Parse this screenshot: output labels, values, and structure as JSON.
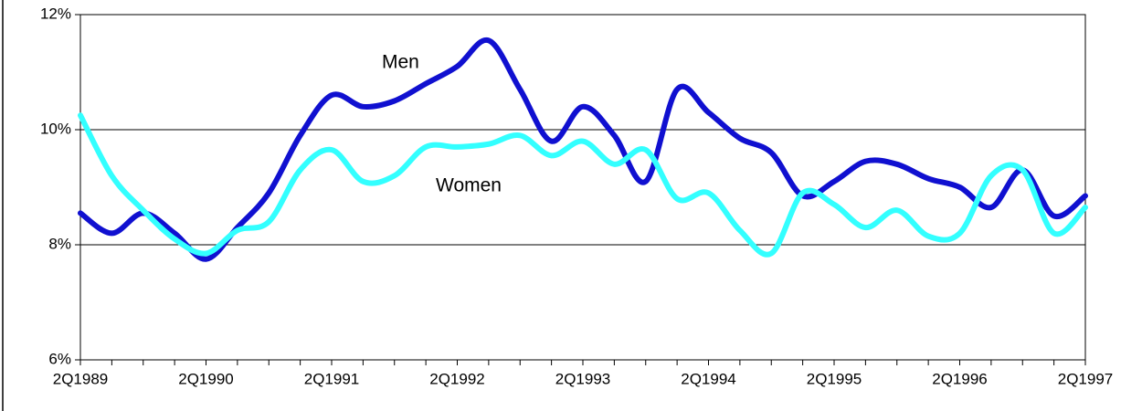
{
  "chart_data": {
    "type": "line",
    "categories": [
      "2Q1989",
      null,
      null,
      null,
      "2Q1990",
      null,
      null,
      null,
      "2Q1991",
      null,
      null,
      null,
      "2Q1992",
      null,
      null,
      null,
      "2Q1993",
      null,
      null,
      null,
      "2Q1994",
      null,
      null,
      null,
      "2Q1995",
      null,
      null,
      null,
      "2Q1996",
      null,
      null,
      null,
      "2Q1997"
    ],
    "series": [
      {
        "name": "Men",
        "color": "#1010d0",
        "values": [
          8.55,
          8.2,
          8.55,
          8.2,
          7.75,
          8.3,
          8.9,
          9.9,
          10.6,
          10.4,
          10.5,
          10.8,
          11.1,
          11.55,
          10.7,
          9.8,
          10.4,
          9.9,
          9.1,
          10.7,
          10.3,
          9.85,
          9.6,
          8.85,
          9.1,
          9.45,
          9.4,
          9.15,
          9.0,
          8.65,
          9.3,
          8.5,
          8.85
        ]
      },
      {
        "name": "Women",
        "color": "#33ffff",
        "values": [
          10.25,
          9.2,
          8.6,
          8.1,
          7.85,
          8.25,
          8.4,
          9.3,
          9.65,
          9.1,
          9.2,
          9.7,
          9.7,
          9.75,
          9.9,
          9.55,
          9.8,
          9.4,
          9.65,
          8.8,
          8.9,
          8.25,
          7.85,
          8.9,
          8.7,
          8.3,
          8.6,
          8.15,
          8.2,
          9.2,
          9.3,
          8.2,
          8.65
        ]
      }
    ],
    "ylim": [
      6,
      12
    ],
    "yticks": [
      {
        "value": 6,
        "label": "6%"
      },
      {
        "value": 8,
        "label": "8%"
      },
      {
        "value": 10,
        "label": "10%"
      },
      {
        "value": 12,
        "label": "12%"
      }
    ],
    "grid": true
  }
}
